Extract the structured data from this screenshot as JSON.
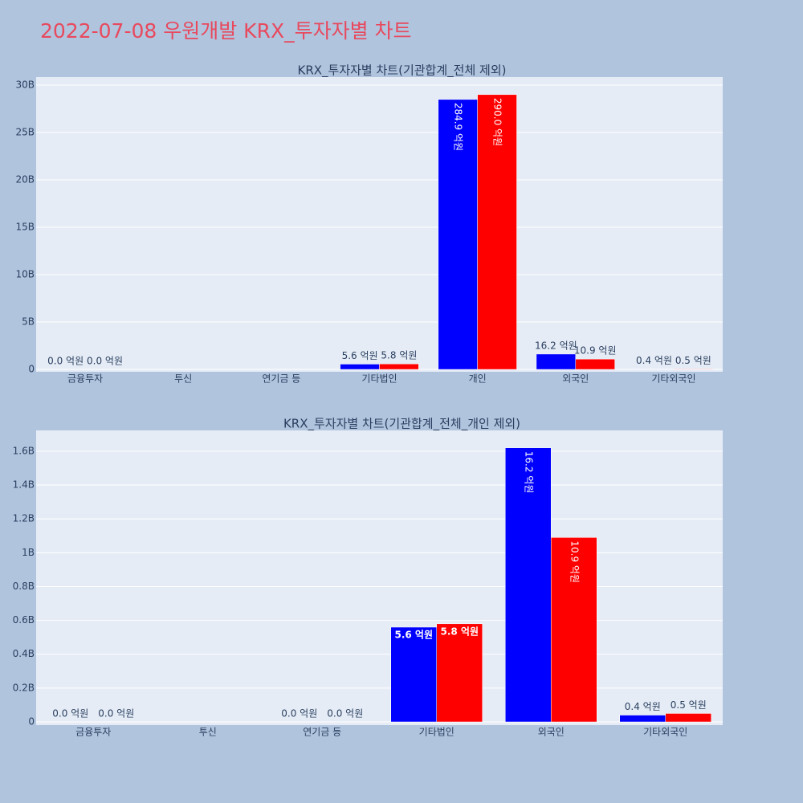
{
  "title": "2022-07-08 우원개발 KRX_투자자별 차트",
  "chart_data": [
    {
      "type": "bar",
      "title": "KRX_투자자별 차트(기관합계_전체 제외)",
      "categories": [
        "금융투자",
        "투신",
        "연기금 등",
        "기타법인",
        "개인",
        "외국인",
        "기타외국인"
      ],
      "series": [
        {
          "color": "#0000ff",
          "values": [
            0,
            null,
            null,
            560000000,
            28490000000,
            1620000000,
            40000000
          ],
          "value_labels": [
            "0.0 억원",
            null,
            null,
            "5.6 억원",
            "284.9 억원",
            "16.2 억원",
            "0.4 억원"
          ]
        },
        {
          "color": "#ff0000",
          "values": [
            0,
            null,
            null,
            580000000,
            29000000000,
            1090000000,
            50000000
          ],
          "value_labels": [
            "0.0 억원",
            null,
            null,
            "5.8 억원",
            "290.0 억원",
            "10.9 억원",
            "0.5 억원"
          ]
        }
      ],
      "ylim": [
        -250000000,
        30850000000
      ],
      "yticks": [
        0,
        {
          "value": 5000000000,
          "label": "5B"
        },
        {
          "value": 10000000000,
          "label": "10B"
        },
        {
          "value": 15000000000,
          "label": "15B"
        },
        {
          "value": 20000000000,
          "label": "20B"
        },
        {
          "value": 25000000000,
          "label": "25B"
        },
        {
          "value": 30000000000,
          "label": "30B"
        }
      ],
      "grid": true
    },
    {
      "type": "bar",
      "title": "KRX_투자자별 차트(기관합계_전체_개인 제외)",
      "categories": [
        "금융투자",
        "투신",
        "연기금 등",
        "기타법인",
        "외국인",
        "기타외국인"
      ],
      "series": [
        {
          "color": "#0000ff",
          "values": [
            0,
            null,
            0,
            560000000,
            1620000000,
            40000000
          ],
          "value_labels": [
            "0.0 억원",
            null,
            "0.0 억원",
            "5.6 억원",
            "16.2 억원",
            "0.4 억원"
          ]
        },
        {
          "color": "#ff0000",
          "values": [
            0,
            null,
            0,
            580000000,
            1090000000,
            50000000
          ],
          "value_labels": [
            "0.0 억원",
            null,
            "0.0 억원",
            "5.8 억원",
            "10.9 억원",
            "0.5 억원"
          ]
        }
      ],
      "ylim": [
        -19000000,
        1723000000
      ],
      "yticks": [
        0,
        {
          "value": 200000000,
          "label": "0.2B"
        },
        {
          "value": 400000000,
          "label": "0.4B"
        },
        {
          "value": 600000000,
          "label": "0.6B"
        },
        {
          "value": 800000000,
          "label": "0.8B"
        },
        {
          "value": 1000000000,
          "label": "1B"
        },
        {
          "value": 1200000000,
          "label": "1.2B"
        },
        {
          "value": 1400000000,
          "label": "1.4B"
        },
        {
          "value": 1600000000,
          "label": "1.6B"
        }
      ],
      "grid": true
    }
  ]
}
